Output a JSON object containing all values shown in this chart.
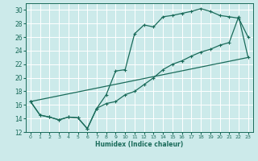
{
  "xlabel": "Humidex (Indice chaleur)",
  "ylabel": "",
  "bg_color": "#cceaea",
  "grid_color": "#ffffff",
  "line_color": "#1a6b5a",
  "xlim": [
    -0.5,
    23.5
  ],
  "ylim": [
    12,
    31
  ],
  "xticks": [
    0,
    1,
    2,
    3,
    4,
    5,
    6,
    7,
    8,
    9,
    10,
    11,
    12,
    13,
    14,
    15,
    16,
    17,
    18,
    19,
    20,
    21,
    22,
    23
  ],
  "yticks": [
    12,
    14,
    16,
    18,
    20,
    22,
    24,
    26,
    28,
    30
  ],
  "line1_x": [
    0,
    1,
    2,
    3,
    4,
    5,
    6,
    7,
    8,
    9,
    10,
    11,
    12,
    13,
    14,
    15,
    16,
    17,
    18,
    19,
    20,
    21,
    22,
    23
  ],
  "line1_y": [
    16.5,
    14.5,
    14.2,
    13.8,
    14.2,
    14.1,
    12.5,
    15.5,
    17.5,
    21.0,
    21.2,
    26.5,
    27.8,
    27.5,
    29.0,
    29.2,
    29.5,
    29.8,
    30.2,
    29.8,
    29.2,
    29.0,
    28.8,
    26.0
  ],
  "line2_x": [
    0,
    1,
    2,
    3,
    4,
    5,
    6,
    7,
    8,
    9,
    10,
    11,
    12,
    13,
    14,
    15,
    16,
    17,
    18,
    19,
    20,
    21,
    22,
    23
  ],
  "line2_y": [
    16.5,
    14.5,
    14.2,
    13.8,
    14.2,
    14.1,
    12.5,
    15.5,
    16.2,
    16.5,
    17.5,
    18.0,
    19.0,
    20.0,
    21.2,
    22.0,
    22.5,
    23.2,
    23.8,
    24.2,
    24.8,
    25.2,
    29.0,
    23.0
  ],
  "line3_x": [
    0,
    23
  ],
  "line3_y": [
    16.5,
    23.0
  ]
}
